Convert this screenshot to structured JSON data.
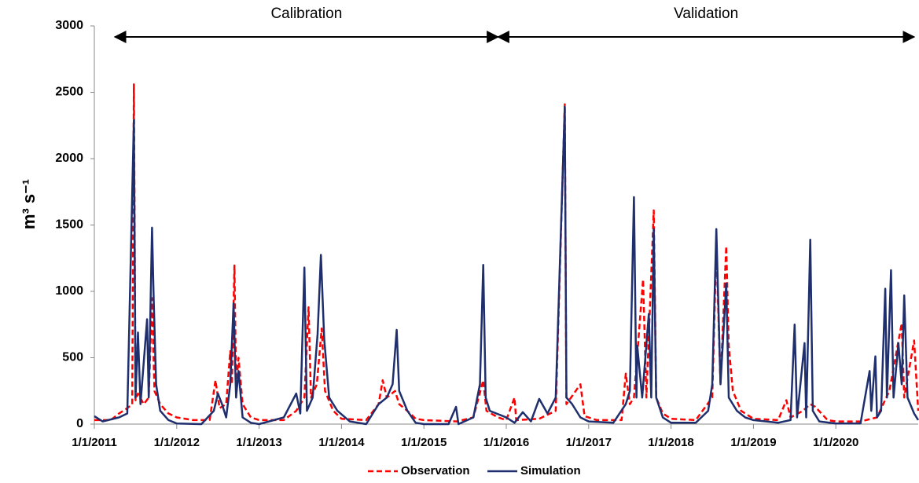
{
  "chart_data": {
    "type": "line",
    "y_label": "m³ s⁻¹",
    "xlim": [
      2011,
      2021
    ],
    "xticks": [
      {
        "value": 2011,
        "label": "1/1/2011"
      },
      {
        "value": 2012,
        "label": "1/1/2012"
      },
      {
        "value": 2013,
        "label": "1/1/2013"
      },
      {
        "value": 2014,
        "label": "1/1/2014"
      },
      {
        "value": 2015,
        "label": "1/1/2015"
      },
      {
        "value": 2016,
        "label": "1/1/2016"
      },
      {
        "value": 2017,
        "label": "1/1/2017"
      },
      {
        "value": 2018,
        "label": "1/1/2018"
      },
      {
        "value": 2019,
        "label": "1/1/2019"
      },
      {
        "value": 2020,
        "label": "1/1/2020"
      }
    ],
    "ylim": [
      0,
      3000
    ],
    "yticks": [
      0,
      500,
      1000,
      1500,
      2000,
      2500,
      3000
    ],
    "annotations": [
      {
        "text": "Calibration",
        "x": [
          2011.25,
          2015.9
        ]
      },
      {
        "text": "Validation",
        "x": [
          2015.9,
          2020.95
        ]
      }
    ],
    "series": [
      {
        "name": "Observation",
        "color": "#ff0000",
        "dash": true,
        "x": [
          2011.0,
          2011.2,
          2011.3,
          2011.4,
          2011.46,
          2011.48,
          2011.5,
          2011.53,
          2011.6,
          2011.66,
          2011.7,
          2011.73,
          2011.8,
          2011.9,
          2012.0,
          2012.2,
          2012.4,
          2012.47,
          2012.52,
          2012.6,
          2012.65,
          2012.67,
          2012.7,
          2012.72,
          2012.75,
          2012.8,
          2012.9,
          2013.0,
          2013.3,
          2013.45,
          2013.55,
          2013.6,
          2013.63,
          2013.7,
          2013.76,
          2013.8,
          2013.9,
          2014.0,
          2014.3,
          2014.45,
          2014.5,
          2014.55,
          2014.65,
          2014.7,
          2014.8,
          2014.9,
          2015.0,
          2015.4,
          2015.6,
          2015.72,
          2015.76,
          2015.9,
          2016.0,
          2016.1,
          2016.12,
          2016.4,
          2016.6,
          2016.71,
          2016.73,
          2016.9,
          2016.95,
          2017.1,
          2017.4,
          2017.45,
          2017.5,
          2017.55,
          2017.66,
          2017.7,
          2017.79,
          2017.82,
          2017.9,
          2018.0,
          2018.3,
          2018.5,
          2018.55,
          2018.6,
          2018.67,
          2018.7,
          2018.75,
          2018.85,
          2019.0,
          2019.3,
          2019.4,
          2019.45,
          2019.6,
          2019.69,
          2019.75,
          2019.9,
          2020.0,
          2020.3,
          2020.5,
          2020.65,
          2020.8,
          2020.83,
          2020.95,
          2021.0
        ],
        "values": [
          30,
          30,
          80,
          120,
          150,
          2560,
          180,
          230,
          150,
          200,
          950,
          250,
          150,
          80,
          50,
          30,
          30,
          330,
          120,
          150,
          550,
          300,
          1195,
          300,
          500,
          150,
          50,
          30,
          30,
          100,
          200,
          880,
          200,
          300,
          720,
          250,
          100,
          40,
          30,
          150,
          330,
          200,
          250,
          150,
          100,
          40,
          30,
          20,
          50,
          330,
          100,
          50,
          30,
          200,
          30,
          40,
          100,
          2410,
          150,
          300,
          60,
          30,
          30,
          380,
          150,
          200,
          1090,
          200,
          1610,
          200,
          80,
          40,
          30,
          200,
          1350,
          300,
          1340,
          590,
          250,
          100,
          40,
          30,
          180,
          50,
          100,
          150,
          130,
          30,
          20,
          20,
          50,
          250,
          760,
          200,
          630,
          100
        ]
      },
      {
        "name": "Simulation",
        "color": "#1f2f6e",
        "dash": false,
        "x": [
          2011.0,
          2011.1,
          2011.3,
          2011.4,
          2011.48,
          2011.5,
          2011.53,
          2011.56,
          2011.64,
          2011.66,
          2011.7,
          2011.72,
          2011.75,
          2011.8,
          2011.9,
          2012.0,
          2012.3,
          2012.45,
          2012.5,
          2012.55,
          2012.6,
          2012.65,
          2012.69,
          2012.72,
          2012.75,
          2012.8,
          2012.9,
          2013.0,
          2013.3,
          2013.45,
          2013.5,
          2013.55,
          2013.58,
          2013.65,
          2013.71,
          2013.75,
          2013.79,
          2013.85,
          2013.95,
          2014.1,
          2014.3,
          2014.45,
          2014.55,
          2014.62,
          2014.67,
          2014.7,
          2014.8,
          2014.9,
          2015.0,
          2015.3,
          2015.39,
          2015.42,
          2015.6,
          2015.68,
          2015.72,
          2015.75,
          2015.8,
          2016.0,
          2016.1,
          2016.2,
          2016.3,
          2016.4,
          2016.5,
          2016.6,
          2016.71,
          2016.73,
          2016.8,
          2016.9,
          2017.0,
          2017.3,
          2017.45,
          2017.5,
          2017.55,
          2017.58,
          2017.59,
          2017.65,
          2017.73,
          2017.76,
          2017.79,
          2017.82,
          2017.9,
          2018.0,
          2018.3,
          2018.45,
          2018.5,
          2018.55,
          2018.6,
          2018.67,
          2018.7,
          2018.8,
          2018.9,
          2019.0,
          2019.3,
          2019.45,
          2019.5,
          2019.53,
          2019.62,
          2019.64,
          2019.69,
          2019.72,
          2019.8,
          2020.0,
          2020.3,
          2020.41,
          2020.43,
          2020.48,
          2020.5,
          2020.55,
          2020.6,
          2020.62,
          2020.67,
          2020.7,
          2020.76,
          2020.8,
          2020.83,
          2020.87,
          2020.95,
          2021.0
        ],
        "values": [
          60,
          20,
          50,
          80,
          2290,
          200,
          690,
          150,
          790,
          200,
          1480,
          940,
          300,
          100,
          30,
          5,
          0,
          100,
          230,
          150,
          50,
          300,
          910,
          200,
          400,
          50,
          10,
          0,
          50,
          230,
          80,
          1180,
          100,
          200,
          680,
          1275,
          640,
          200,
          100,
          20,
          0,
          150,
          200,
          300,
          710,
          250,
          100,
          10,
          0,
          0,
          130,
          0,
          50,
          300,
          1200,
          200,
          100,
          50,
          10,
          90,
          20,
          190,
          80,
          200,
          2390,
          200,
          150,
          50,
          20,
          10,
          150,
          250,
          1710,
          200,
          590,
          200,
          830,
          200,
          1470,
          200,
          50,
          10,
          10,
          100,
          300,
          1470,
          300,
          1060,
          200,
          100,
          50,
          30,
          10,
          30,
          750,
          50,
          610,
          50,
          1390,
          100,
          20,
          5,
          5,
          400,
          100,
          510,
          50,
          100,
          1020,
          200,
          1160,
          200,
          610,
          300,
          970,
          200,
          80,
          30
        ]
      }
    ]
  }
}
